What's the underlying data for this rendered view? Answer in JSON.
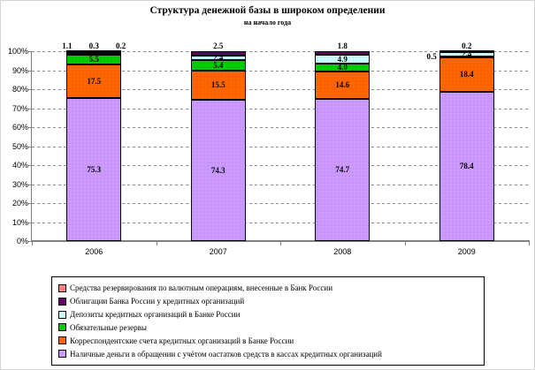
{
  "chart_data": {
    "type": "bar",
    "variant": "stacked-100-percent",
    "title": "Структура денежной базы в широком определении",
    "subtitle": "на начало года",
    "categories": [
      "2006",
      "2007",
      "2008",
      "2009"
    ],
    "series": [
      {
        "key": "cash-in-circulation",
        "name": "Наличные деньги в обращении с учётом оастатков средств в кассах кредитных организаций",
        "color": "#CC99FF",
        "values": [
          75.3,
          74.3,
          74.7,
          78.4
        ]
      },
      {
        "key": "correspondent-accounts",
        "name": "Корреспондентские счета кредитных организаций в Банке России",
        "color": "#FF6600",
        "values": [
          17.5,
          15.5,
          14.6,
          18.4
        ]
      },
      {
        "key": "required-reserves",
        "name": "Обязательные резервы",
        "color": "#00CC00",
        "values": [
          5.5,
          5.4,
          4.0,
          0.5
        ]
      },
      {
        "key": "deposits",
        "name": "Депозиты кредитных организаций в Банке России",
        "color": "#CCFFFF",
        "values": [
          0.2,
          2.4,
          4.9,
          2.4
        ]
      },
      {
        "key": "bank-of-russia-bonds",
        "name": "Облигации Банка России у кредитных организаций",
        "color": "#660066",
        "values": [
          1.1,
          2.5,
          1.8,
          0.2
        ]
      },
      {
        "key": "fx-reserving-funds",
        "name": "Средства резервирования по валютным операциям, внесенные в Банк России",
        "color": "#FF8080",
        "values": [
          0.3,
          0.0,
          0.0,
          0.0
        ]
      }
    ],
    "bar_labels": {
      "inside": [
        [
          "75.3",
          "17.5",
          "5.5",
          null,
          null,
          null
        ],
        [
          "74.3",
          "15.5",
          "5.4",
          "2.4",
          null,
          null
        ],
        [
          "74.7",
          "14.6",
          "4.0",
          "4.9",
          null,
          null
        ],
        [
          "78.4",
          "18.4",
          null,
          "2.4",
          null,
          null
        ]
      ],
      "above": [
        [
          "1.1",
          "0.3",
          "0.2"
        ],
        [
          "2.5"
        ],
        [
          "1.8"
        ],
        [
          "0.2"
        ]
      ],
      "side": [
        null,
        null,
        null,
        "0.5"
      ]
    },
    "yaxis": {
      "ticks": [
        "0%",
        "10%",
        "20%",
        "30%",
        "40%",
        "50%",
        "60%",
        "70%",
        "80%",
        "90%",
        "100%"
      ],
      "min": 0,
      "max": 100,
      "grid": "dashed"
    },
    "legend_position": "bottom"
  }
}
